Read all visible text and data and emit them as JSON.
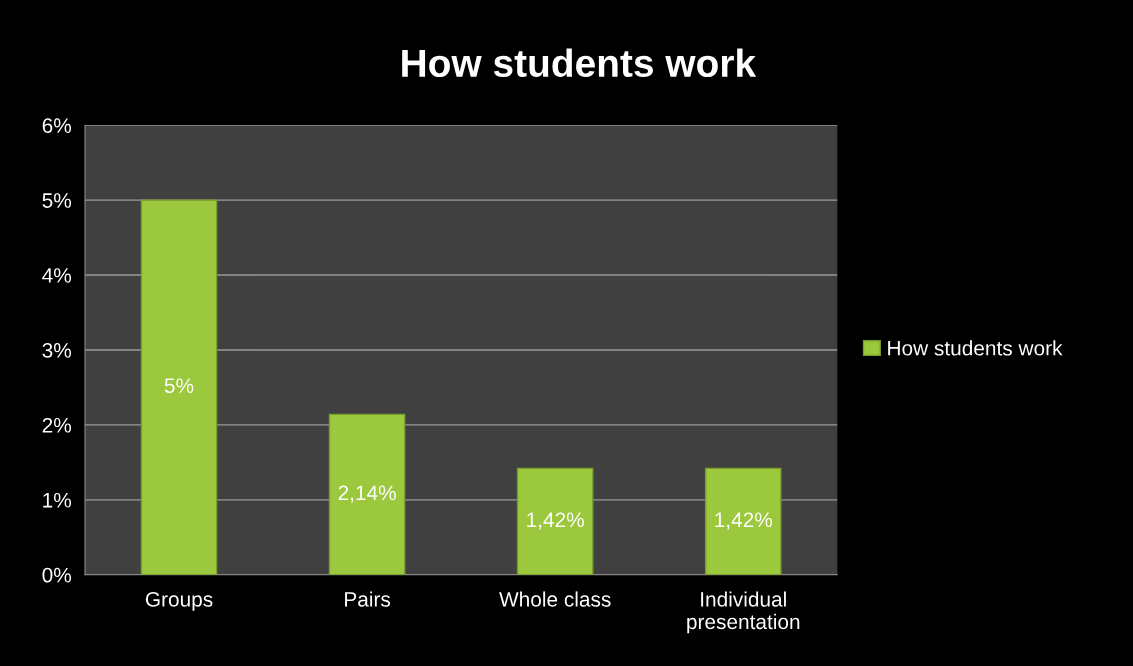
{
  "chart_data": {
    "type": "bar",
    "title": "How students work",
    "categories": [
      "Groups",
      "Pairs",
      "Whole class",
      "Individual\npresentation"
    ],
    "series": [
      {
        "name": "How students work",
        "color": "#9bc83c",
        "values": [
          5,
          2.14,
          1.42,
          1.42
        ],
        "value_labels": [
          "5%",
          "2,14%",
          "1,42%",
          "1,42%"
        ]
      }
    ],
    "ylim": [
      0,
      6
    ],
    "yticks": [
      {
        "value": 0,
        "label": "0%"
      },
      {
        "value": 1,
        "label": "1%"
      },
      {
        "value": 2,
        "label": "2%"
      },
      {
        "value": 3,
        "label": "3%"
      },
      {
        "value": 4,
        "label": "4%"
      },
      {
        "value": 5,
        "label": "5%"
      },
      {
        "value": 6,
        "label": "6%"
      }
    ],
    "grid": "y",
    "legend": "right"
  }
}
